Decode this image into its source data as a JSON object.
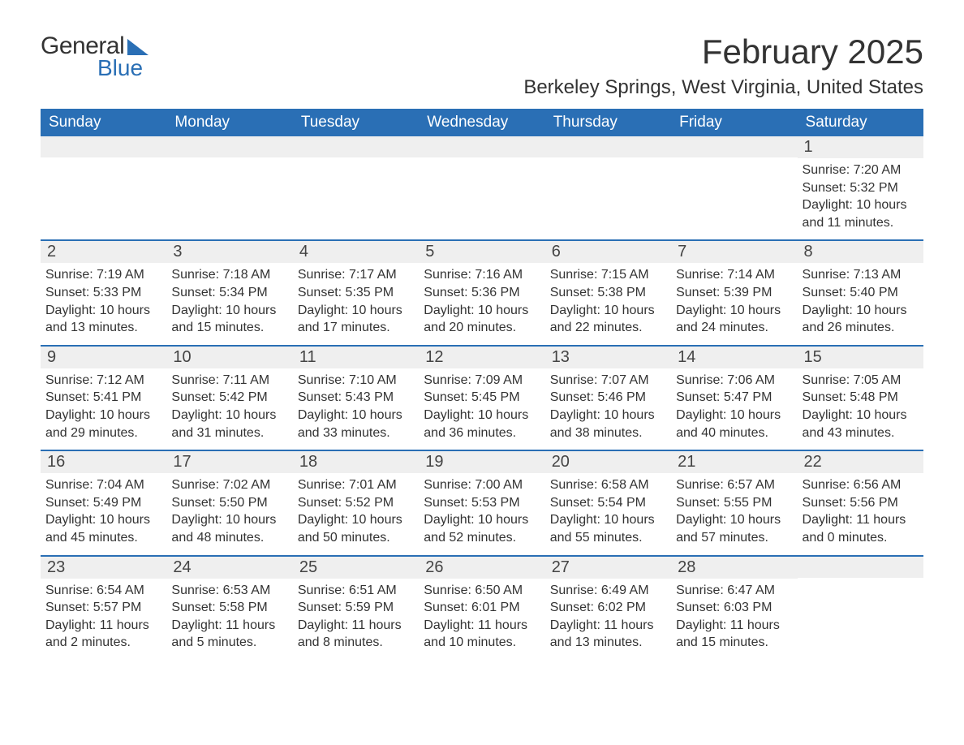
{
  "logo": {
    "word1": "General",
    "word2": "Blue"
  },
  "header": {
    "title": "February 2025",
    "location": "Berkeley Springs, West Virginia, United States"
  },
  "colors": {
    "brand": "#2a6fb5",
    "header_bg": "#2a6fb5",
    "header_text": "#ffffff",
    "daynum_bg": "#efefef",
    "text": "#333333",
    "background": "#ffffff"
  },
  "day_names": [
    "Sunday",
    "Monday",
    "Tuesday",
    "Wednesday",
    "Thursday",
    "Friday",
    "Saturday"
  ],
  "labels": {
    "sunrise_prefix": "Sunrise: ",
    "sunset_prefix": "Sunset: ",
    "daylight_prefix": "Daylight: "
  },
  "weeks": [
    [
      null,
      null,
      null,
      null,
      null,
      null,
      {
        "day": "1",
        "sunrise": "7:20 AM",
        "sunset": "5:32 PM",
        "daylight": "10 hours and 11 minutes."
      }
    ],
    [
      {
        "day": "2",
        "sunrise": "7:19 AM",
        "sunset": "5:33 PM",
        "daylight": "10 hours and 13 minutes."
      },
      {
        "day": "3",
        "sunrise": "7:18 AM",
        "sunset": "5:34 PM",
        "daylight": "10 hours and 15 minutes."
      },
      {
        "day": "4",
        "sunrise": "7:17 AM",
        "sunset": "5:35 PM",
        "daylight": "10 hours and 17 minutes."
      },
      {
        "day": "5",
        "sunrise": "7:16 AM",
        "sunset": "5:36 PM",
        "daylight": "10 hours and 20 minutes."
      },
      {
        "day": "6",
        "sunrise": "7:15 AM",
        "sunset": "5:38 PM",
        "daylight": "10 hours and 22 minutes."
      },
      {
        "day": "7",
        "sunrise": "7:14 AM",
        "sunset": "5:39 PM",
        "daylight": "10 hours and 24 minutes."
      },
      {
        "day": "8",
        "sunrise": "7:13 AM",
        "sunset": "5:40 PM",
        "daylight": "10 hours and 26 minutes."
      }
    ],
    [
      {
        "day": "9",
        "sunrise": "7:12 AM",
        "sunset": "5:41 PM",
        "daylight": "10 hours and 29 minutes."
      },
      {
        "day": "10",
        "sunrise": "7:11 AM",
        "sunset": "5:42 PM",
        "daylight": "10 hours and 31 minutes."
      },
      {
        "day": "11",
        "sunrise": "7:10 AM",
        "sunset": "5:43 PM",
        "daylight": "10 hours and 33 minutes."
      },
      {
        "day": "12",
        "sunrise": "7:09 AM",
        "sunset": "5:45 PM",
        "daylight": "10 hours and 36 minutes."
      },
      {
        "day": "13",
        "sunrise": "7:07 AM",
        "sunset": "5:46 PM",
        "daylight": "10 hours and 38 minutes."
      },
      {
        "day": "14",
        "sunrise": "7:06 AM",
        "sunset": "5:47 PM",
        "daylight": "10 hours and 40 minutes."
      },
      {
        "day": "15",
        "sunrise": "7:05 AM",
        "sunset": "5:48 PM",
        "daylight": "10 hours and 43 minutes."
      }
    ],
    [
      {
        "day": "16",
        "sunrise": "7:04 AM",
        "sunset": "5:49 PM",
        "daylight": "10 hours and 45 minutes."
      },
      {
        "day": "17",
        "sunrise": "7:02 AM",
        "sunset": "5:50 PM",
        "daylight": "10 hours and 48 minutes."
      },
      {
        "day": "18",
        "sunrise": "7:01 AM",
        "sunset": "5:52 PM",
        "daylight": "10 hours and 50 minutes."
      },
      {
        "day": "19",
        "sunrise": "7:00 AM",
        "sunset": "5:53 PM",
        "daylight": "10 hours and 52 minutes."
      },
      {
        "day": "20",
        "sunrise": "6:58 AM",
        "sunset": "5:54 PM",
        "daylight": "10 hours and 55 minutes."
      },
      {
        "day": "21",
        "sunrise": "6:57 AM",
        "sunset": "5:55 PM",
        "daylight": "10 hours and 57 minutes."
      },
      {
        "day": "22",
        "sunrise": "6:56 AM",
        "sunset": "5:56 PM",
        "daylight": "11 hours and 0 minutes."
      }
    ],
    [
      {
        "day": "23",
        "sunrise": "6:54 AM",
        "sunset": "5:57 PM",
        "daylight": "11 hours and 2 minutes."
      },
      {
        "day": "24",
        "sunrise": "6:53 AM",
        "sunset": "5:58 PM",
        "daylight": "11 hours and 5 minutes."
      },
      {
        "day": "25",
        "sunrise": "6:51 AM",
        "sunset": "5:59 PM",
        "daylight": "11 hours and 8 minutes."
      },
      {
        "day": "26",
        "sunrise": "6:50 AM",
        "sunset": "6:01 PM",
        "daylight": "11 hours and 10 minutes."
      },
      {
        "day": "27",
        "sunrise": "6:49 AM",
        "sunset": "6:02 PM",
        "daylight": "11 hours and 13 minutes."
      },
      {
        "day": "28",
        "sunrise": "6:47 AM",
        "sunset": "6:03 PM",
        "daylight": "11 hours and 15 minutes."
      },
      null
    ]
  ]
}
